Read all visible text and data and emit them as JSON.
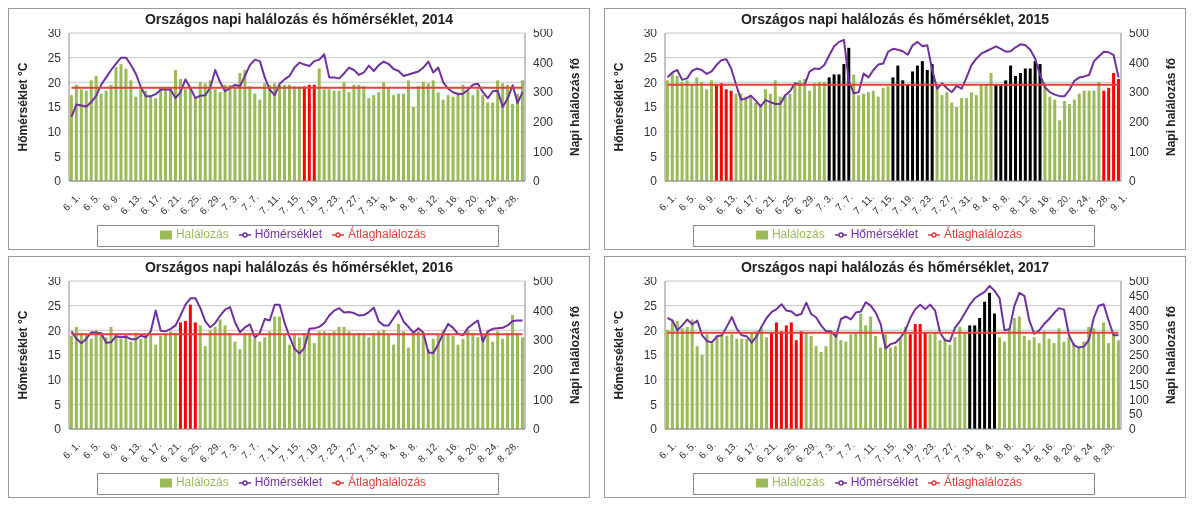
{
  "chart_data": [
    {
      "type": "bar",
      "title": "Országos napi halálozás és hőmérséklet, 2014",
      "ylabel": "Hőmérséklet °C",
      "y2label": "Napi halálozás fő",
      "ylim": [
        0,
        30
      ],
      "yticks": [
        0,
        5,
        10,
        15,
        20,
        25,
        30
      ],
      "y2lim": [
        0,
        500
      ],
      "y2ticks": [
        0,
        100,
        200,
        300,
        400,
        500
      ],
      "grid": "y",
      "legend": "bottom",
      "categories": [
        "6. 1.",
        null,
        null,
        null,
        "6. 5.",
        null,
        null,
        null,
        "6. 9.",
        null,
        null,
        null,
        "6. 13.",
        null,
        null,
        null,
        "6. 17.",
        null,
        null,
        null,
        "6. 21.",
        null,
        null,
        null,
        "6. 25.",
        null,
        null,
        null,
        "6. 29.",
        null,
        null,
        null,
        "7. 3.",
        null,
        null,
        null,
        "7. 7.",
        null,
        null,
        null,
        "7. 11.",
        null,
        null,
        null,
        "7. 15.",
        null,
        null,
        null,
        "7. 19.",
        null,
        null,
        null,
        "7. 23.",
        null,
        null,
        null,
        "7. 27.",
        null,
        null,
        null,
        "7. 31.",
        null,
        null,
        null,
        "8. 4.",
        null,
        null,
        null,
        "8. 8.",
        null,
        null,
        null,
        "8. 12.",
        null,
        null,
        null,
        "8. 16.",
        null,
        null,
        null,
        "8. 20.",
        null,
        null,
        null,
        "8. 24.",
        null,
        null,
        null,
        "8. 28.",
        null,
        null,
        null
      ],
      "series": [
        {
          "name": "Halálozás",
          "type": "bar",
          "axis": "y2",
          "color": "#9bbb59",
          "colors": [
            "#9bbb59",
            "#9bbb59",
            "#9bbb59",
            "#9bbb59",
            "#9bbb59",
            "#9bbb59",
            "#9bbb59",
            "#9bbb59",
            "#9bbb59",
            "#9bbb59",
            "#9bbb59",
            "#9bbb59",
            "#9bbb59",
            "#9bbb59",
            "#9bbb59",
            "#9bbb59",
            "#9bbb59",
            "#9bbb59",
            "#9bbb59",
            "#9bbb59",
            "#9bbb59",
            "#9bbb59",
            "#9bbb59",
            "#9bbb59",
            "#9bbb59",
            "#9bbb59",
            "#9bbb59",
            "#9bbb59",
            "#9bbb59",
            "#9bbb59",
            "#9bbb59",
            "#9bbb59",
            "#9bbb59",
            "#9bbb59",
            "#9bbb59",
            "#9bbb59",
            "#9bbb59",
            "#9bbb59",
            "#9bbb59",
            "#9bbb59",
            "#9bbb59",
            "#9bbb59",
            "#9bbb59",
            "#9bbb59",
            "#9bbb59",
            "#9bbb59",
            "#9bbb59",
            "#ff0000",
            "#ff0000",
            "#ff0000",
            "#9bbb59",
            "#9bbb59",
            "#9bbb59",
            "#9bbb59",
            "#9bbb59",
            "#9bbb59",
            "#9bbb59",
            "#9bbb59",
            "#9bbb59",
            "#9bbb59",
            "#9bbb59",
            "#9bbb59",
            "#9bbb59",
            "#9bbb59",
            "#9bbb59",
            "#9bbb59",
            "#9bbb59",
            "#9bbb59",
            "#9bbb59",
            "#9bbb59",
            "#9bbb59",
            "#9bbb59",
            "#9bbb59",
            "#9bbb59",
            "#9bbb59",
            "#9bbb59",
            "#9bbb59",
            "#9bbb59",
            "#9bbb59",
            "#9bbb59",
            "#9bbb59",
            "#9bbb59",
            "#9bbb59",
            "#9bbb59",
            "#9bbb59",
            "#9bbb59",
            "#9bbb59",
            "#9bbb59",
            "#9bbb59",
            "#9bbb59",
            "#9bbb59",
            "#9bbb59"
          ],
          "values": [
            290,
            325,
            310,
            305,
            340,
            355,
            295,
            305,
            325,
            385,
            395,
            380,
            340,
            285,
            310,
            305,
            290,
            280,
            315,
            310,
            315,
            375,
            345,
            310,
            315,
            280,
            335,
            330,
            340,
            310,
            300,
            325,
            325,
            320,
            365,
            375,
            320,
            295,
            275,
            330,
            325,
            330,
            325,
            325,
            325,
            320,
            320,
            320,
            325,
            325,
            380,
            310,
            310,
            305,
            305,
            335,
            300,
            325,
            325,
            320,
            280,
            290,
            300,
            335,
            315,
            290,
            295,
            295,
            340,
            250,
            320,
            335,
            330,
            340,
            300,
            275,
            290,
            285,
            300,
            325,
            305,
            290,
            310,
            290,
            265,
            265,
            340,
            330,
            325,
            260,
            295,
            340
          ]
        },
        {
          "name": "Hőmérséklet",
          "type": "line",
          "color": "#7030a0",
          "values": [
            13,
            15.5,
            15.3,
            15.1,
            16,
            17.3,
            19.5,
            21,
            22.5,
            23.8,
            25,
            25,
            23.5,
            21.7,
            19,
            17.2,
            17.2,
            17.6,
            18.5,
            18.6,
            18.5,
            16.8,
            18,
            20.6,
            18.8,
            16.8,
            17.3,
            17.4,
            18.9,
            22.5,
            20,
            18.2,
            18.8,
            19.5,
            19.2,
            21.3,
            23.5,
            24.6,
            24.3,
            21,
            18.5,
            17.4,
            19.7,
            20.6,
            21.3,
            23,
            24,
            23.6,
            23.3,
            24.3,
            24.6,
            25.7,
            21,
            21,
            20.8,
            21.8,
            23,
            22.5,
            21.5,
            22,
            23.4,
            22.3,
            23.5,
            24.2,
            23.7,
            22.7,
            22.3,
            21.3,
            21.6,
            21.9,
            22.2,
            23,
            24.2,
            22,
            23,
            20,
            18.7,
            18,
            17.6,
            17.7,
            18.5,
            19.5,
            19.7,
            18,
            16.8,
            18.2,
            18.3,
            15,
            16.7,
            19.4,
            15.8,
            18
          ]
        },
        {
          "name": "Átlaghalálozás",
          "type": "line",
          "axis": "y2",
          "color": "#e0403a",
          "values": [
            315,
            315,
            315,
            315,
            315,
            315,
            315,
            315,
            315,
            315,
            315,
            315,
            315,
            315,
            315,
            315,
            315,
            315,
            315,
            315,
            315,
            315,
            315,
            315,
            315,
            315,
            315,
            315,
            315,
            315,
            315,
            315,
            315,
            315,
            315,
            315,
            315,
            315,
            315,
            315,
            315,
            315,
            315,
            315,
            315,
            315,
            315,
            315,
            315,
            315,
            315,
            315,
            315,
            315,
            315,
            315,
            315,
            315,
            315,
            315,
            315,
            315,
            315,
            315,
            315,
            315,
            315,
            315,
            315,
            315,
            315,
            315,
            315,
            315,
            315,
            315,
            315,
            315,
            315,
            315,
            315,
            315,
            315,
            315,
            315,
            315,
            315,
            315,
            315,
            315,
            315,
            315
          ]
        }
      ]
    },
    {
      "type": "bar",
      "title": "Országos napi halálozás és hőmérséklet, 2015",
      "ylabel": "Hőmérséklet °C",
      "y2label": "Napi halálozás fő",
      "ylim": [
        0,
        30
      ],
      "yticks": [
        0,
        5,
        10,
        15,
        20,
        25,
        30
      ],
      "y2lim": [
        0,
        500
      ],
      "y2ticks": [
        0,
        100,
        200,
        300,
        400,
        500
      ],
      "grid": "y",
      "legend": "bottom",
      "categories": [
        "6. 1.",
        null,
        null,
        null,
        "6. 5.",
        null,
        null,
        null,
        "6. 9.",
        null,
        null,
        null,
        "6. 13.",
        null,
        null,
        null,
        "6. 17.",
        null,
        null,
        null,
        "6. 21.",
        null,
        null,
        null,
        "6. 25.",
        null,
        null,
        null,
        "6. 29.",
        null,
        null,
        null,
        "7. 3.",
        null,
        null,
        null,
        "7. 7.",
        null,
        null,
        null,
        "7. 11.",
        null,
        null,
        null,
        "7. 15.",
        null,
        null,
        null,
        "7. 19.",
        null,
        null,
        null,
        "7. 23.",
        null,
        null,
        null,
        "7. 27.",
        null,
        null,
        null,
        "7. 31.",
        null,
        null,
        null,
        "8. 4.",
        null,
        null,
        null,
        "8. 8.",
        null,
        null,
        null,
        "8. 12.",
        null,
        null,
        null,
        "8. 16.",
        null,
        null,
        null,
        "8. 20.",
        null,
        null,
        null,
        "8. 24.",
        null,
        null,
        null,
        "8. 28.",
        null,
        null,
        null,
        "9. 1."
      ],
      "series": [
        {
          "name": "Halálozás",
          "type": "bar",
          "axis": "y2",
          "color": "#9bbb59",
          "colors": [
            "#9bbb59",
            "#9bbb59",
            "#9bbb59",
            "#9bbb59",
            "#9bbb59",
            "#9bbb59",
            "#9bbb59",
            "#9bbb59",
            "#9bbb59",
            "#9bbb59",
            "#ff0000",
            "#ff0000",
            "#ff0000",
            "#ff0000",
            "#9bbb59",
            "#9bbb59",
            "#9bbb59",
            "#9bbb59",
            "#9bbb59",
            "#9bbb59",
            "#9bbb59",
            "#9bbb59",
            "#9bbb59",
            "#9bbb59",
            "#9bbb59",
            "#9bbb59",
            "#9bbb59",
            "#9bbb59",
            "#9bbb59",
            "#9bbb59",
            "#9bbb59",
            "#9bbb59",
            "#9bbb59",
            "#000000",
            "#000000",
            "#000000",
            "#000000",
            "#000000",
            "#9bbb59",
            "#9bbb59",
            "#9bbb59",
            "#9bbb59",
            "#9bbb59",
            "#9bbb59",
            "#9bbb59",
            "#9bbb59",
            "#000000",
            "#000000",
            "#000000",
            "#000000",
            "#000000",
            "#000000",
            "#000000",
            "#000000",
            "#000000",
            "#9bbb59",
            "#9bbb59",
            "#9bbb59",
            "#9bbb59",
            "#9bbb59",
            "#9bbb59",
            "#9bbb59",
            "#9bbb59",
            "#9bbb59",
            "#9bbb59",
            "#9bbb59",
            "#9bbb59",
            "#000000",
            "#000000",
            "#000000",
            "#000000",
            "#000000",
            "#000000",
            "#000000",
            "#000000",
            "#000000",
            "#000000",
            "#9bbb59",
            "#9bbb59",
            "#9bbb59",
            "#9bbb59",
            "#9bbb59",
            "#9bbb59",
            "#9bbb59",
            "#9bbb59",
            "#9bbb59",
            "#9bbb59",
            "#9bbb59",
            "#9bbb59",
            "#ff0000",
            "#ff0000",
            "#ff0000",
            "#ff0000"
          ],
          "values": [
            340,
            365,
            355,
            335,
            340,
            325,
            350,
            335,
            310,
            340,
            325,
            330,
            310,
            305,
            295,
            295,
            285,
            290,
            265,
            260,
            310,
            295,
            340,
            285,
            290,
            295,
            325,
            340,
            345,
            305,
            330,
            335,
            335,
            350,
            360,
            360,
            395,
            450,
            360,
            290,
            295,
            300,
            305,
            285,
            315,
            320,
            350,
            390,
            340,
            325,
            370,
            390,
            405,
            375,
            395,
            320,
            290,
            300,
            265,
            250,
            280,
            280,
            300,
            290,
            325,
            325,
            365,
            325,
            325,
            340,
            390,
            355,
            365,
            380,
            380,
            405,
            395,
            330,
            285,
            275,
            205,
            270,
            260,
            275,
            295,
            305,
            305,
            305,
            335,
            305,
            315,
            365,
            345
          ]
        },
        {
          "name": "Hőmérséklet",
          "type": "line",
          "color": "#7030a0",
          "values": [
            21,
            22,
            22.5,
            20.5,
            20.8,
            22.3,
            22.8,
            22.5,
            21.7,
            22.2,
            23.5,
            24.5,
            24.7,
            22.8,
            19.5,
            16.5,
            16.7,
            17.3,
            16.3,
            15.1,
            16.4,
            16,
            15.6,
            15.6,
            17.4,
            18.2,
            19.8,
            19.5,
            19.6,
            22.2,
            22.8,
            22.7,
            23.5,
            25.5,
            27.3,
            28.2,
            28.6,
            20.2,
            17.8,
            18,
            21.8,
            21,
            22.5,
            23.6,
            23.8,
            26.2,
            26.8,
            26.6,
            26.3,
            25.6,
            27.5,
            28.2,
            27.3,
            27.5,
            22.5,
            18.7,
            19.8,
            18.8,
            18,
            19.3,
            18.7,
            21,
            23.5,
            24.8,
            25.8,
            26.3,
            26.8,
            27.3,
            26.8,
            26.2,
            26.3,
            27.1,
            27.7,
            27.5,
            26.6,
            24.8,
            21.5,
            19,
            18,
            17.5,
            17.2,
            17.2,
            18.5,
            20.3,
            21,
            21.2,
            21.5,
            24.3,
            25.3,
            26.2,
            26.1,
            25.5,
            21
          ]
        },
        {
          "name": "Átlaghalálozás",
          "type": "line",
          "axis": "y2",
          "color": "#e0403a",
          "values": [
            325,
            325,
            325,
            325,
            325,
            325,
            325,
            325,
            325,
            325,
            325,
            325,
            325,
            325,
            325,
            325,
            325,
            325,
            325,
            325,
            325,
            325,
            325,
            325,
            325,
            325,
            325,
            325,
            325,
            325,
            325,
            325,
            325,
            325,
            325,
            325,
            325,
            325,
            325,
            325,
            325,
            325,
            325,
            325,
            325,
            325,
            325,
            325,
            325,
            325,
            325,
            325,
            325,
            325,
            325,
            325,
            325,
            325,
            325,
            325,
            325,
            325,
            325,
            325,
            325,
            325,
            325,
            325,
            325,
            325,
            325,
            325,
            325,
            325,
            325,
            325,
            325,
            325,
            325,
            325,
            325,
            325,
            325,
            325,
            325,
            325,
            325,
            325,
            325,
            325,
            325,
            325,
            325
          ]
        }
      ]
    },
    {
      "type": "bar",
      "title": "Országos napi halálozás és hőmérséklet, 2016",
      "ylabel": "Hőmérséklet °C",
      "y2label": "Napi halálozás fő",
      "ylim": [
        0,
        30
      ],
      "yticks": [
        0,
        5,
        10,
        15,
        20,
        25,
        30
      ],
      "y2lim": [
        0,
        500
      ],
      "y2ticks": [
        0,
        100,
        200,
        300,
        400,
        500
      ],
      "grid": "y",
      "legend": "bottom",
      "categories": [
        "6. 1.",
        null,
        null,
        null,
        "6. 5.",
        null,
        null,
        null,
        "6. 9.",
        null,
        null,
        null,
        "6. 13.",
        null,
        null,
        null,
        "6. 17.",
        null,
        null,
        null,
        "6. 21.",
        null,
        null,
        null,
        "6. 25.",
        null,
        null,
        null,
        "6. 29.",
        null,
        null,
        null,
        "7. 3.",
        null,
        null,
        null,
        "7. 7.",
        null,
        null,
        null,
        "7. 11.",
        null,
        null,
        null,
        "7. 15.",
        null,
        null,
        null,
        "7. 19.",
        null,
        null,
        null,
        "7. 23.",
        null,
        null,
        null,
        "7. 27.",
        null,
        null,
        null,
        "7. 31.",
        null,
        null,
        null,
        "8. 4.",
        null,
        null,
        null,
        "8. 8.",
        null,
        null,
        null,
        "8. 12.",
        null,
        null,
        null,
        "8. 16.",
        null,
        null,
        null,
        "8. 20.",
        null,
        null,
        null,
        "8. 24.",
        null,
        null,
        null,
        "8. 28.",
        null,
        null,
        null
      ],
      "series": [
        {
          "name": "Halálozás",
          "type": "bar",
          "axis": "y2",
          "color": "#9bbb59",
          "colors": [
            "#9bbb59",
            "#9bbb59",
            "#9bbb59",
            "#9bbb59",
            "#9bbb59",
            "#9bbb59",
            "#9bbb59",
            "#9bbb59",
            "#9bbb59",
            "#9bbb59",
            "#9bbb59",
            "#9bbb59",
            "#9bbb59",
            "#9bbb59",
            "#9bbb59",
            "#9bbb59",
            "#9bbb59",
            "#9bbb59",
            "#9bbb59",
            "#9bbb59",
            "#9bbb59",
            "#9bbb59",
            "#ff0000",
            "#ff0000",
            "#ff0000",
            "#ff0000",
            "#9bbb59",
            "#9bbb59",
            "#9bbb59",
            "#9bbb59",
            "#9bbb59",
            "#9bbb59",
            "#9bbb59",
            "#9bbb59",
            "#9bbb59",
            "#9bbb59",
            "#9bbb59",
            "#9bbb59",
            "#9bbb59",
            "#9bbb59",
            "#9bbb59",
            "#9bbb59",
            "#9bbb59",
            "#9bbb59",
            "#9bbb59",
            "#9bbb59",
            "#9bbb59",
            "#9bbb59",
            "#9bbb59",
            "#9bbb59",
            "#9bbb59",
            "#9bbb59",
            "#9bbb59",
            "#9bbb59",
            "#9bbb59",
            "#9bbb59",
            "#9bbb59",
            "#9bbb59",
            "#9bbb59",
            "#9bbb59",
            "#9bbb59",
            "#9bbb59",
            "#9bbb59",
            "#9bbb59",
            "#9bbb59",
            "#9bbb59",
            "#9bbb59",
            "#9bbb59",
            "#9bbb59",
            "#9bbb59",
            "#9bbb59",
            "#9bbb59",
            "#9bbb59",
            "#9bbb59",
            "#9bbb59",
            "#9bbb59",
            "#9bbb59",
            "#9bbb59",
            "#9bbb59",
            "#9bbb59",
            "#9bbb59",
            "#9bbb59",
            "#9bbb59",
            "#9bbb59",
            "#9bbb59",
            "#9bbb59",
            "#9bbb59",
            "#9bbb59",
            "#9bbb59",
            "#9bbb59",
            "#9bbb59",
            "#9bbb59"
          ],
          "values": [
            315,
            345,
            325,
            320,
            305,
            335,
            325,
            310,
            345,
            320,
            305,
            320,
            295,
            325,
            305,
            320,
            320,
            285,
            315,
            320,
            330,
            325,
            360,
            365,
            420,
            360,
            350,
            280,
            335,
            345,
            370,
            350,
            325,
            295,
            270,
            325,
            325,
            305,
            295,
            310,
            330,
            380,
            380,
            320,
            285,
            320,
            310,
            325,
            325,
            290,
            330,
            330,
            325,
            330,
            345,
            345,
            330,
            320,
            325,
            325,
            310,
            325,
            330,
            335,
            320,
            285,
            355,
            330,
            275,
            325,
            330,
            325,
            270,
            305,
            320,
            335,
            320,
            315,
            285,
            305,
            335,
            325,
            310,
            320,
            330,
            295,
            330,
            305,
            325,
            385,
            325,
            310
          ]
        },
        {
          "name": "Hőmérséklet",
          "type": "line",
          "color": "#7030a0",
          "values": [
            19.8,
            18.3,
            17.4,
            18.3,
            19.6,
            19.5,
            19.4,
            17.5,
            17.6,
            18.8,
            18.6,
            18.7,
            18.2,
            18.2,
            18.9,
            18.6,
            19.8,
            24,
            19.9,
            19.8,
            20.3,
            21,
            23,
            25.2,
            26.5,
            26.5,
            24.5,
            21.8,
            20.6,
            21.5,
            23,
            24.2,
            24.7,
            21.6,
            19.6,
            20.6,
            21.2,
            18.5,
            19.5,
            22.3,
            22,
            25.2,
            25.2,
            21.5,
            18.7,
            16.3,
            15.3,
            16.5,
            20.3,
            20.4,
            20.7,
            21.5,
            23,
            24,
            24.5,
            23.6,
            23.7,
            23.5,
            23,
            23.1,
            23.7,
            24.6,
            21.8,
            21,
            21,
            22.5,
            24,
            21.8,
            20.7,
            19.5,
            20.4,
            19.5,
            15.5,
            15.4,
            17.2,
            19.4,
            21.3,
            20.5,
            19.3,
            19,
            20.5,
            21.3,
            22,
            17.7,
            19.8,
            20.3,
            20.4,
            20.5,
            21,
            21.9,
            22,
            22
          ]
        },
        {
          "name": "Átlaghalálozás",
          "type": "line",
          "axis": "y2",
          "color": "#e0403a",
          "values": [
            320,
            320,
            320,
            320,
            320,
            320,
            320,
            320,
            320,
            320,
            320,
            320,
            320,
            320,
            320,
            320,
            320,
            320,
            320,
            320,
            320,
            320,
            320,
            320,
            320,
            320,
            320,
            320,
            320,
            320,
            320,
            320,
            320,
            320,
            320,
            320,
            320,
            320,
            320,
            320,
            320,
            320,
            320,
            320,
            320,
            320,
            320,
            320,
            320,
            320,
            320,
            320,
            320,
            320,
            320,
            320,
            320,
            320,
            320,
            320,
            320,
            320,
            320,
            320,
            320,
            320,
            320,
            320,
            320,
            320,
            320,
            320,
            320,
            320,
            320,
            320,
            320,
            320,
            320,
            320,
            320,
            320,
            320,
            320,
            320,
            320,
            320,
            320,
            320,
            320,
            320,
            320
          ]
        }
      ]
    },
    {
      "type": "bar",
      "title": "Országos napi halálozás és hőmérséklet, 2017",
      "ylabel": "Hőmérséklet °C",
      "y2label": "Napi halálozás fő",
      "ylim": [
        0,
        30
      ],
      "yticks": [
        0,
        5,
        10,
        15,
        20,
        25,
        30
      ],
      "y2lim": [
        0,
        500
      ],
      "y2ticks": [
        0,
        50,
        100,
        150,
        200,
        250,
        300,
        350,
        400,
        450,
        500
      ],
      "grid": "y",
      "legend": "bottom",
      "categories": [
        "6. 1.",
        null,
        null,
        null,
        "6. 5.",
        null,
        null,
        null,
        "6. 9.",
        null,
        null,
        null,
        "6. 13.",
        null,
        null,
        null,
        "6. 17.",
        null,
        null,
        null,
        "6. 21.",
        null,
        null,
        null,
        "6. 25.",
        null,
        null,
        null,
        "6. 29.",
        null,
        null,
        null,
        "7. 3.",
        null,
        null,
        null,
        "7. 7.",
        null,
        null,
        null,
        "7. 11.",
        null,
        null,
        null,
        "7. 15.",
        null,
        null,
        null,
        "7. 19.",
        null,
        null,
        null,
        "7. 23.",
        null,
        null,
        null,
        "7. 27.",
        null,
        null,
        null,
        "7. 31.",
        null,
        null,
        null,
        "8. 4.",
        null,
        null,
        null,
        "8. 8.",
        null,
        null,
        null,
        "8. 12.",
        null,
        null,
        null,
        "8. 16.",
        null,
        null,
        null,
        "8. 20.",
        null,
        null,
        null,
        "8. 24.",
        null,
        null,
        null,
        "8. 28.",
        null,
        null,
        null
      ],
      "series": [
        {
          "name": "Halálozás",
          "type": "bar",
          "axis": "y2",
          "color": "#9bbb59",
          "colors": [
            "#9bbb59",
            "#9bbb59",
            "#9bbb59",
            "#9bbb59",
            "#9bbb59",
            "#9bbb59",
            "#9bbb59",
            "#9bbb59",
            "#9bbb59",
            "#9bbb59",
            "#9bbb59",
            "#9bbb59",
            "#9bbb59",
            "#9bbb59",
            "#9bbb59",
            "#9bbb59",
            "#9bbb59",
            "#9bbb59",
            "#9bbb59",
            "#9bbb59",
            "#9bbb59",
            "#ff0000",
            "#ff0000",
            "#ff0000",
            "#ff0000",
            "#ff0000",
            "#ff0000",
            "#ff0000",
            "#9bbb59",
            "#9bbb59",
            "#9bbb59",
            "#9bbb59",
            "#9bbb59",
            "#9bbb59",
            "#9bbb59",
            "#9bbb59",
            "#9bbb59",
            "#9bbb59",
            "#9bbb59",
            "#9bbb59",
            "#9bbb59",
            "#9bbb59",
            "#9bbb59",
            "#9bbb59",
            "#9bbb59",
            "#9bbb59",
            "#9bbb59",
            "#9bbb59",
            "#9bbb59",
            "#ff0000",
            "#ff0000",
            "#ff0000",
            "#ff0000",
            "#9bbb59",
            "#9bbb59",
            "#9bbb59",
            "#9bbb59",
            "#9bbb59",
            "#9bbb59",
            "#9bbb59",
            "#9bbb59",
            "#000000",
            "#000000",
            "#000000",
            "#000000",
            "#000000",
            "#000000",
            "#9bbb59",
            "#9bbb59",
            "#9bbb59",
            "#9bbb59",
            "#9bbb59",
            "#9bbb59",
            "#9bbb59",
            "#9bbb59",
            "#9bbb59",
            "#9bbb59",
            "#9bbb59",
            "#9bbb59",
            "#9bbb59",
            "#9bbb59",
            "#9bbb59",
            "#9bbb59",
            "#9bbb59",
            "#9bbb59",
            "#9bbb59",
            "#9bbb59",
            "#9bbb59",
            "#9bbb59",
            "#9bbb59",
            "#9bbb59",
            "#9bbb59"
          ],
          "values": [
            335,
            365,
            365,
            340,
            345,
            370,
            280,
            250,
            320,
            290,
            315,
            315,
            315,
            320,
            305,
            305,
            305,
            325,
            330,
            340,
            310,
            325,
            360,
            330,
            350,
            360,
            300,
            330,
            325,
            315,
            280,
            260,
            280,
            325,
            320,
            300,
            295,
            320,
            325,
            390,
            350,
            380,
            315,
            275,
            320,
            275,
            280,
            305,
            345,
            320,
            355,
            355,
            325,
            320,
            325,
            300,
            305,
            285,
            310,
            345,
            325,
            350,
            350,
            375,
            430,
            460,
            390,
            310,
            295,
            340,
            375,
            380,
            315,
            300,
            310,
            290,
            330,
            305,
            290,
            340,
            295,
            310,
            290,
            275,
            295,
            345,
            340,
            325,
            360,
            290,
            325,
            300
          ]
        },
        {
          "name": "Hőmérséklet",
          "type": "line",
          "color": "#7030a0",
          "values": [
            22.5,
            22,
            20,
            21,
            22.2,
            21.2,
            22,
            19,
            17.8,
            17.6,
            18.8,
            19,
            20.8,
            22.7,
            20.3,
            19,
            18.8,
            17.5,
            18.8,
            20.8,
            22.5,
            23.7,
            24.3,
            25.3,
            24,
            23.8,
            23,
            23.3,
            25.6,
            23.3,
            22.6,
            21,
            19.8,
            19.8,
            18.7,
            22.3,
            22.8,
            22.2,
            23.6,
            23.8,
            25.7,
            25,
            23.6,
            21.3,
            16.3,
            17.2,
            17.5,
            18.5,
            20,
            22.5,
            24.3,
            25.2,
            24.3,
            25.2,
            24,
            19.5,
            18,
            17.8,
            20.5,
            21.8,
            23.5,
            25.2,
            26.5,
            27.2,
            27.8,
            29,
            28,
            26.5,
            20,
            20.2,
            25,
            27.6,
            27,
            22,
            19.3,
            20,
            21.3,
            22.3,
            23.5,
            24.5,
            24.2,
            19,
            17,
            16.5,
            16.7,
            18,
            22.5,
            25,
            25.3,
            22,
            19,
            19
          ]
        },
        {
          "name": "Átlaghalálozás",
          "type": "line",
          "axis": "y2",
          "color": "#e0403a",
          "values": [
            325,
            325,
            325,
            325,
            325,
            325,
            325,
            325,
            325,
            325,
            325,
            325,
            325,
            325,
            325,
            325,
            325,
            325,
            325,
            325,
            325,
            325,
            325,
            325,
            325,
            325,
            325,
            325,
            325,
            325,
            325,
            325,
            325,
            325,
            325,
            325,
            325,
            325,
            325,
            325,
            325,
            325,
            325,
            325,
            325,
            325,
            325,
            325,
            325,
            325,
            325,
            325,
            325,
            325,
            325,
            325,
            325,
            325,
            325,
            325,
            325,
            325,
            325,
            325,
            325,
            325,
            325,
            325,
            325,
            325,
            325,
            325,
            325,
            325,
            325,
            325,
            325,
            325,
            325,
            325,
            325,
            325,
            325,
            325,
            325,
            325,
            325,
            325,
            325,
            325,
            325,
            325
          ]
        }
      ]
    }
  ]
}
